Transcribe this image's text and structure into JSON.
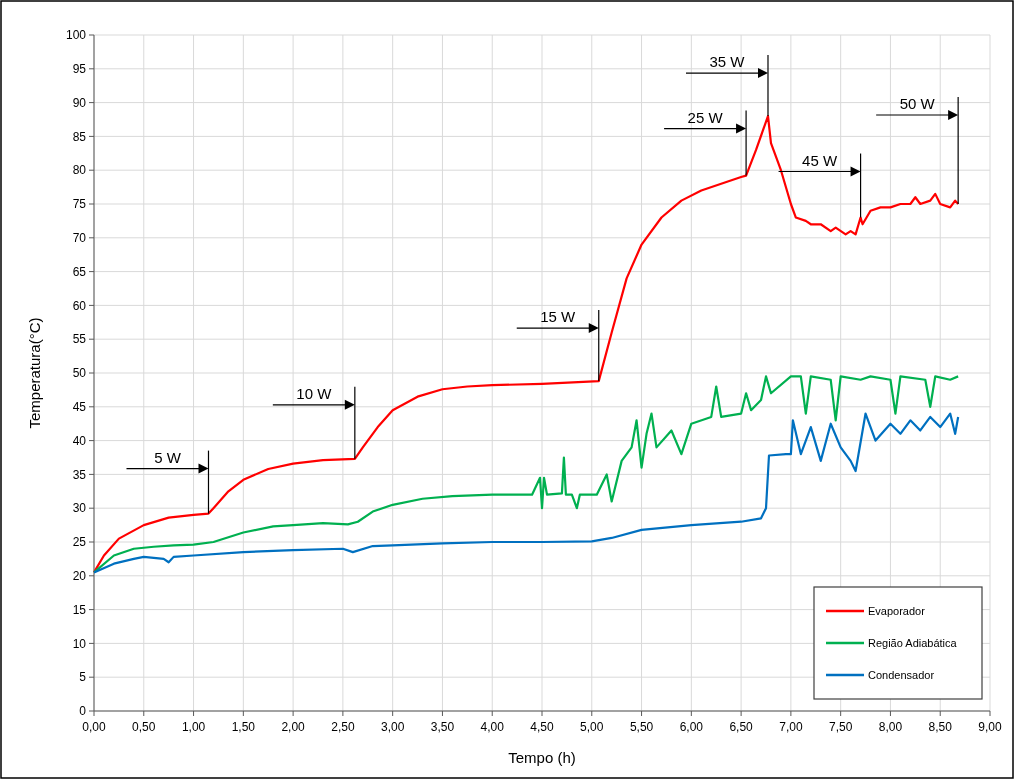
{
  "chart_data": {
    "type": "line",
    "xlabel": "Tempo (h)",
    "ylabel": "Temperatura(°C)",
    "xlim": [
      0,
      9
    ],
    "ylim": [
      0,
      100
    ],
    "xticks": [
      {
        "value": 0,
        "label": "0,00"
      },
      {
        "value": 0.5,
        "label": "0,50"
      },
      {
        "value": 1,
        "label": "1,00"
      },
      {
        "value": 1.5,
        "label": "1,50"
      },
      {
        "value": 2,
        "label": "2,00"
      },
      {
        "value": 2.5,
        "label": "2,50"
      },
      {
        "value": 3,
        "label": "3,00"
      },
      {
        "value": 3.5,
        "label": "3,50"
      },
      {
        "value": 4,
        "label": "4,00"
      },
      {
        "value": 4.5,
        "label": "4,50"
      },
      {
        "value": 5,
        "label": "5,00"
      },
      {
        "value": 5.5,
        "label": "5,50"
      },
      {
        "value": 6,
        "label": "6,00"
      },
      {
        "value": 6.5,
        "label": "6,50"
      },
      {
        "value": 7,
        "label": "7,00"
      },
      {
        "value": 7.5,
        "label": "7,50"
      },
      {
        "value": 8,
        "label": "8,00"
      },
      {
        "value": 8.5,
        "label": "8,50"
      },
      {
        "value": 9,
        "label": "9,00"
      }
    ],
    "yticks": [
      0,
      5,
      10,
      15,
      20,
      25,
      30,
      35,
      40,
      45,
      50,
      55,
      60,
      65,
      70,
      75,
      80,
      85,
      90,
      95,
      100
    ],
    "grid": true,
    "legend": "bottom right",
    "marker": "none",
    "line_style": "solid",
    "series": [
      {
        "name": "Evaporador",
        "color": "#ff0000",
        "x": [
          0,
          0.1,
          0.25,
          0.5,
          0.75,
          1.0,
          1.15,
          1.2,
          1.35,
          1.5,
          1.75,
          2.0,
          2.3,
          2.62,
          2.7,
          2.85,
          3.0,
          3.25,
          3.5,
          3.75,
          4.0,
          4.5,
          5.07,
          5.2,
          5.35,
          5.5,
          5.7,
          5.9,
          6.1,
          6.3,
          6.5,
          6.55,
          6.65,
          6.77,
          6.8,
          6.9,
          7.0,
          7.05,
          7.15,
          7.2,
          7.3,
          7.4,
          7.45,
          7.55,
          7.6,
          7.65,
          7.7,
          7.72,
          7.8,
          7.9,
          8.0,
          8.1,
          8.2,
          8.25,
          8.3,
          8.4,
          8.45,
          8.5,
          8.6,
          8.65,
          8.68
        ],
        "values": [
          20.5,
          23,
          25.5,
          27.5,
          28.6,
          29,
          29.2,
          30,
          32.5,
          34.2,
          35.8,
          36.6,
          37.1,
          37.3,
          39,
          42,
          44.5,
          46.5,
          47.6,
          48,
          48.2,
          48.4,
          48.8,
          56,
          64,
          69,
          73,
          75.5,
          77,
          78,
          79,
          79.2,
          83,
          88,
          84,
          80,
          75,
          73,
          72.5,
          72,
          72,
          71,
          71.5,
          70.5,
          71,
          70.5,
          73,
          72,
          74,
          74.5,
          74.5,
          75,
          75,
          76,
          75,
          75.5,
          76.5,
          75,
          74.5,
          75.5,
          75
        ]
      },
      {
        "name": "Região Adiabática",
        "color": "#00b050",
        "x": [
          0,
          0.2,
          0.4,
          0.6,
          0.8,
          1.0,
          1.2,
          1.5,
          1.8,
          2.0,
          2.3,
          2.55,
          2.65,
          2.8,
          3.0,
          3.3,
          3.6,
          4.0,
          4.4,
          4.48,
          4.5,
          4.52,
          4.55,
          4.7,
          4.72,
          4.74,
          4.8,
          4.85,
          4.88,
          5.05,
          5.15,
          5.2,
          5.3,
          5.4,
          5.45,
          5.5,
          5.55,
          5.6,
          5.65,
          5.8,
          5.9,
          6.0,
          6.2,
          6.25,
          6.3,
          6.5,
          6.55,
          6.6,
          6.7,
          6.75,
          6.8,
          7.0,
          7.1,
          7.15,
          7.2,
          7.4,
          7.45,
          7.5,
          7.7,
          7.8,
          8.0,
          8.05,
          8.1,
          8.35,
          8.4,
          8.45,
          8.6,
          8.68
        ],
        "values": [
          20.5,
          23,
          24,
          24.3,
          24.5,
          24.6,
          25,
          26.4,
          27.3,
          27.5,
          27.8,
          27.6,
          28,
          29.5,
          30.5,
          31.4,
          31.8,
          32,
          32,
          34.5,
          30,
          34.5,
          32,
          32.2,
          37.5,
          32,
          32,
          30,
          32,
          32,
          35,
          31,
          37,
          39,
          43,
          36,
          41,
          44,
          39,
          41.5,
          38,
          42.5,
          43.5,
          48,
          43.5,
          44,
          47,
          44.5,
          46,
          49.5,
          47,
          49.5,
          49.5,
          44,
          49.5,
          49,
          43,
          49.5,
          49,
          49.5,
          49,
          44,
          49.5,
          49,
          45,
          49.5,
          49,
          49.5
        ]
      },
      {
        "name": "Condensador",
        "color": "#0070c0",
        "x": [
          0,
          0.2,
          0.4,
          0.5,
          0.7,
          0.75,
          0.8,
          1.0,
          1.5,
          2.0,
          2.5,
          2.6,
          2.8,
          3.0,
          3.5,
          4.0,
          4.5,
          5.0,
          5.2,
          5.5,
          6.0,
          6.5,
          6.7,
          6.75,
          6.78,
          6.95,
          7.0,
          7.02,
          7.1,
          7.2,
          7.3,
          7.4,
          7.5,
          7.6,
          7.65,
          7.75,
          7.85,
          8.0,
          8.1,
          8.2,
          8.3,
          8.4,
          8.5,
          8.6,
          8.65,
          8.68
        ],
        "values": [
          20.5,
          21.8,
          22.5,
          22.8,
          22.5,
          22,
          22.8,
          23,
          23.5,
          23.8,
          24,
          23.5,
          24.4,
          24.5,
          24.8,
          25,
          25,
          25.1,
          25.6,
          26.8,
          27.5,
          28,
          28.5,
          30,
          37.8,
          38,
          38,
          43,
          38,
          42,
          37,
          42.5,
          39,
          37,
          35.5,
          44,
          40,
          42.5,
          41,
          43,
          41.5,
          43.5,
          42,
          44,
          41,
          43.5
        ]
      }
    ],
    "ref_lines": [
      {
        "axis": "x",
        "value": 1.15,
        "label": "5 W"
      },
      {
        "axis": "x",
        "value": 2.62,
        "label": "10 W"
      },
      {
        "axis": "x",
        "value": 5.07,
        "label": "15 W"
      },
      {
        "axis": "x",
        "value": 6.55,
        "label": "25 W"
      },
      {
        "axis": "x",
        "value": 6.77,
        "label": "35 W"
      },
      {
        "axis": "x",
        "value": 7.7,
        "label": "45 W"
      },
      {
        "axis": "x",
        "value": 8.68,
        "label": "50 W"
      }
    ]
  }
}
